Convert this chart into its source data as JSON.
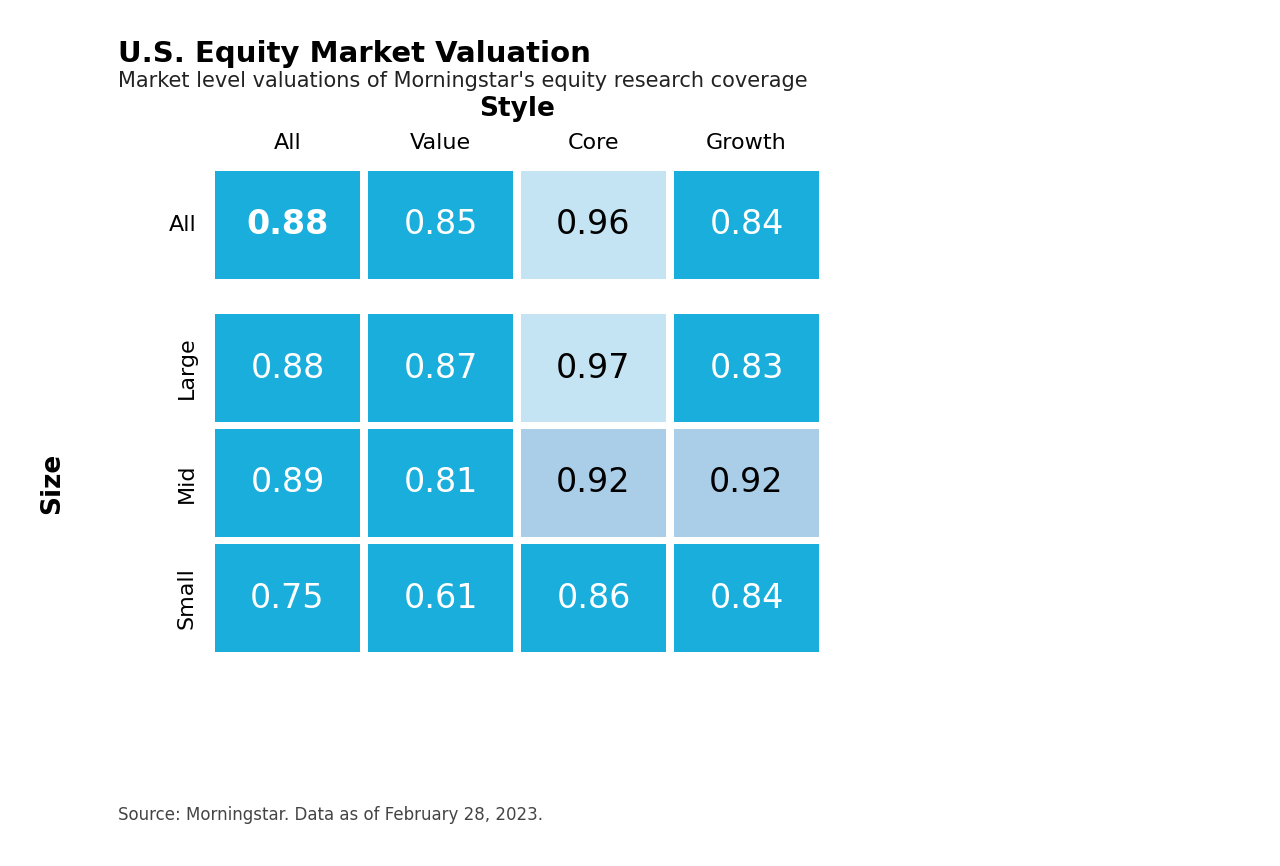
{
  "title": "U.S. Equity Market Valuation",
  "subtitle": "Market level valuations of Morningstar's equity research coverage",
  "source": "Source: Morningstar. Data as of February 28, 2023.",
  "col_header_label": "Style",
  "row_header_label": "Size",
  "col_headers": [
    "All",
    "Value",
    "Core",
    "Growth"
  ],
  "row_headers": [
    "All",
    "Large",
    "Mid",
    "Small"
  ],
  "values": [
    [
      0.88,
      0.85,
      0.96,
      0.84
    ],
    [
      0.88,
      0.87,
      0.97,
      0.83
    ],
    [
      0.89,
      0.81,
      0.92,
      0.92
    ],
    [
      0.75,
      0.61,
      0.86,
      0.84
    ]
  ],
  "cell_colors": [
    [
      "#1AAEDC",
      "#1AAEDC",
      "#C5E4F3",
      "#1AAEDC"
    ],
    [
      "#1AAEDC",
      "#1AAEDC",
      "#C5E4F3",
      "#1AAEDC"
    ],
    [
      "#1AAEDC",
      "#1AAEDC",
      "#AACDE8",
      "#AACDE8"
    ],
    [
      "#1AAEDC",
      "#1AAEDC",
      "#1AAEDC",
      "#1AAEDC"
    ]
  ],
  "text_colors": [
    [
      "white",
      "white",
      "black",
      "white"
    ],
    [
      "white",
      "white",
      "black",
      "white"
    ],
    [
      "white",
      "white",
      "black",
      "black"
    ],
    [
      "white",
      "white",
      "white",
      "white"
    ]
  ],
  "bold_cells": [
    [
      0,
      0
    ]
  ],
  "background_color": "#ffffff",
  "title_fontsize": 21,
  "subtitle_fontsize": 15,
  "source_fontsize": 12,
  "cell_fontsize": 24,
  "col_header_fontsize": 16,
  "row_header_fontsize": 16,
  "axis_label_fontsize": 19
}
